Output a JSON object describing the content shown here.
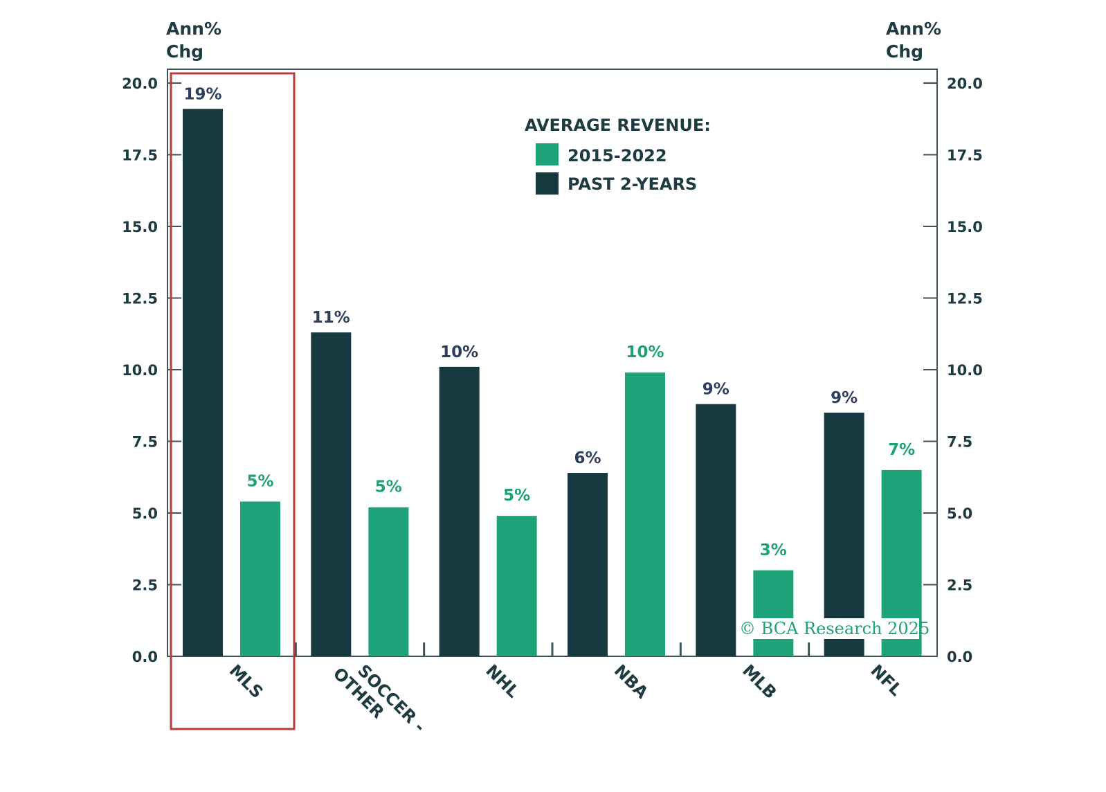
{
  "chart_data": {
    "type": "bar",
    "categories": [
      "MLS",
      "SOCCER - OTHER",
      "NHL",
      "NBA",
      "MLB",
      "NFL"
    ],
    "series": [
      {
        "name": "PAST 2-YEARS",
        "color": "#163a3f",
        "label_color": "#2c3e5c",
        "values": [
          19.1,
          11.3,
          10.1,
          6.4,
          8.8,
          8.5
        ],
        "data_labels": [
          "19%",
          "11%",
          "10%",
          "6%",
          "9%",
          "9%"
        ]
      },
      {
        "name": "2015-2022",
        "color": "#1fa27a",
        "label_color": "#1fa27a",
        "values": [
          5.4,
          5.2,
          4.9,
          9.9,
          3.0,
          6.5
        ],
        "data_labels": [
          "5%",
          "5%",
          "5%",
          "10%",
          "3%",
          "7%"
        ]
      }
    ],
    "ylabel_left": "Ann% Chg",
    "ylabel_right": "Ann% Chg",
    "ylim": [
      0,
      20
    ],
    "yticks": [
      "0.0",
      "2.5",
      "5.0",
      "7.5",
      "10.0",
      "12.5",
      "15.0",
      "17.5",
      "20.0"
    ],
    "legend_title": "AVERAGE REVENUE:",
    "legend_position": "top-center",
    "grid": false,
    "highlight": {
      "category": "MLS",
      "color": "#b83a3a"
    },
    "watermark": "© BCA Research 2025"
  }
}
